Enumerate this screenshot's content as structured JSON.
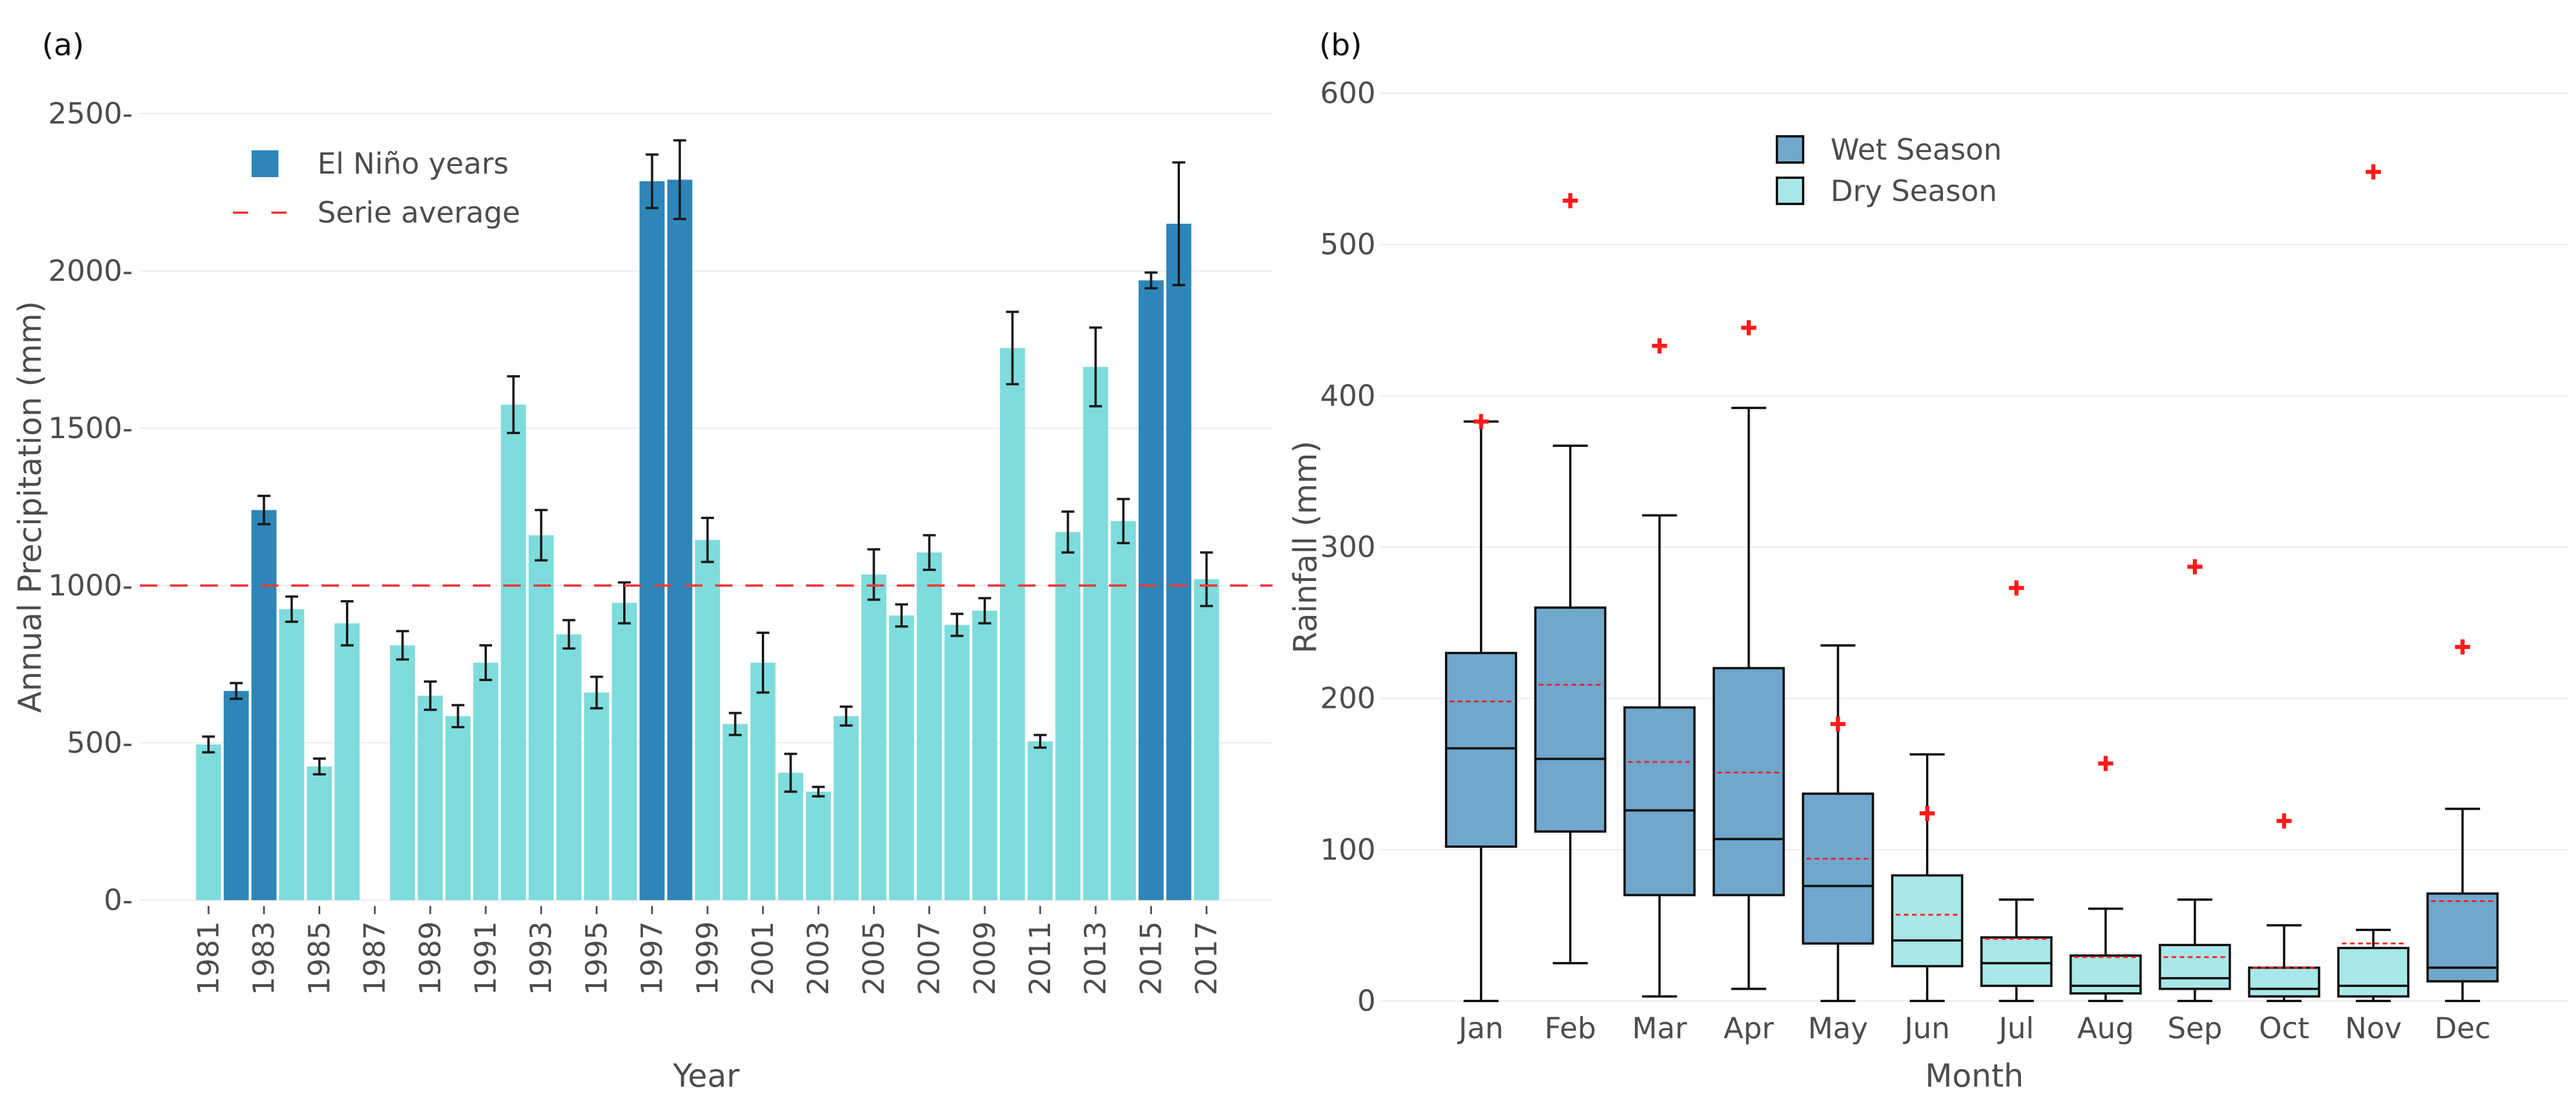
{
  "figure": {
    "panel_a_label": "(a)",
    "panel_b_label": "(b)"
  },
  "colors": {
    "el_nino": "#2e86b8",
    "normal": "#7fdcdc",
    "average_line": "#ee3b3b",
    "wet_box": "#6fa8cc",
    "dry_box": "#a8e8e8",
    "outlier": "#ff1a1a",
    "error_bar": "#1a1a1a"
  },
  "chart_data": [
    {
      "type": "bar",
      "title": "",
      "xlabel": "Year",
      "ylabel": "Annual Precipitation (mm)",
      "ylim": [
        0,
        2500
      ],
      "yticks": [
        0,
        500,
        1000,
        1500,
        2000,
        2500
      ],
      "yticklabels": [
        "0",
        "500",
        "1000",
        "1500",
        "2000",
        "2500"
      ],
      "xticklabels": [
        "1981",
        "1983",
        "1985",
        "1987",
        "1989",
        "1991",
        "1993",
        "1995",
        "1997",
        "1999",
        "2001",
        "2003",
        "2005",
        "2007",
        "2009",
        "2011",
        "2013",
        "2015",
        "2017"
      ],
      "years": [
        1981,
        1982,
        1983,
        1984,
        1985,
        1986,
        1987,
        1988,
        1989,
        1990,
        1991,
        1992,
        1993,
        1994,
        1995,
        1996,
        1997,
        1998,
        1999,
        2000,
        2001,
        2002,
        2003,
        2004,
        2005,
        2006,
        2007,
        2008,
        2009,
        2010,
        2011,
        2012,
        2013,
        2014,
        2015,
        2016,
        2017
      ],
      "values": [
        495,
        665,
        1240,
        925,
        425,
        880,
        null,
        810,
        650,
        585,
        755,
        1575,
        1160,
        845,
        660,
        945,
        2285,
        2290,
        1145,
        560,
        755,
        405,
        345,
        585,
        1035,
        905,
        1105,
        875,
        920,
        1755,
        505,
        1170,
        1695,
        1205,
        1970,
        2150,
        1020
      ],
      "errors": [
        25,
        25,
        45,
        40,
        25,
        70,
        null,
        45,
        45,
        35,
        55,
        90,
        80,
        45,
        50,
        65,
        85,
        125,
        70,
        35,
        95,
        60,
        15,
        30,
        80,
        35,
        55,
        35,
        40,
        115,
        20,
        65,
        125,
        70,
        25,
        195,
        85
      ],
      "el_nino_years": [
        1982,
        1983,
        1997,
        1998,
        2015,
        2016
      ],
      "average": 1000,
      "legend": {
        "el_nino_label": "El Niño years",
        "average_label": "Serie average"
      }
    },
    {
      "type": "box",
      "title": "",
      "xlabel": "Month",
      "ylabel": "Rainfall (mm)",
      "ylim": [
        0,
        600
      ],
      "yticks": [
        0,
        100,
        200,
        300,
        400,
        500,
        600
      ],
      "yticklabels": [
        "0",
        "100",
        "200",
        "300",
        "400",
        "500",
        "600"
      ],
      "categories": [
        "Jan",
        "Feb",
        "Mar",
        "Apr",
        "May",
        "Jun",
        "Jul",
        "Aug",
        "Sep",
        "Oct",
        "Nov",
        "Dec"
      ],
      "season": [
        "wet",
        "wet",
        "wet",
        "wet",
        "wet",
        "dry",
        "dry",
        "dry",
        "dry",
        "dry",
        "dry",
        "wet"
      ],
      "whisker_low": [
        0,
        25,
        3,
        8,
        0,
        0,
        0,
        0,
        0,
        0,
        0,
        0
      ],
      "q1": [
        102,
        112,
        70,
        70,
        38,
        23,
        10,
        5,
        8,
        3,
        3,
        13
      ],
      "median": [
        167,
        160,
        126,
        107,
        76,
        40,
        25,
        10,
        15,
        8,
        10,
        22
      ],
      "q3": [
        230,
        260,
        194,
        220,
        137,
        83,
        42,
        30,
        37,
        22,
        35,
        71
      ],
      "whisker_high": [
        383,
        367,
        321,
        392,
        235,
        163,
        67,
        61,
        67,
        50,
        47,
        127
      ],
      "mean": [
        198,
        209,
        158,
        151,
        94,
        57,
        41,
        29,
        29,
        22,
        38,
        66
      ],
      "outliers": [
        383,
        529,
        433,
        445,
        183,
        124,
        273,
        157,
        287,
        119,
        548,
        234
      ],
      "legend": {
        "wet_label": "Wet Season",
        "dry_label": "Dry Season"
      }
    }
  ]
}
